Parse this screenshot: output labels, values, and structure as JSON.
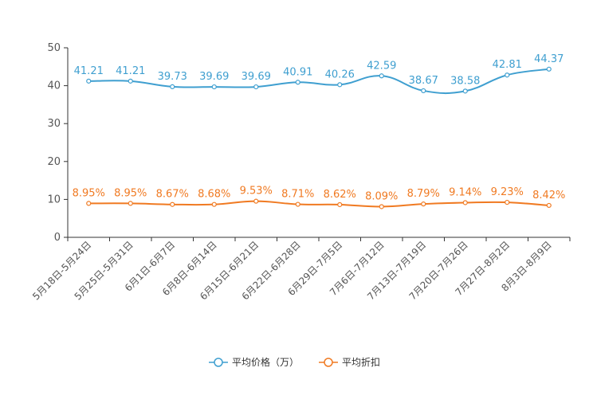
{
  "chart_data": {
    "type": "line",
    "categories": [
      "5月18日-5月24日",
      "5月25日-5月31日",
      "6月1日-6月7日",
      "6月8日-6月14日",
      "6月15日-6月21日",
      "6月22日-6月28日",
      "6月29日-7月5日",
      "7月6日-7月12日",
      "7月13日-7月19日",
      "7月20日-7月26日",
      "7月27日-8月2日",
      "8月3日-8月9日"
    ],
    "series": [
      {
        "name": "平均价格（万）",
        "color": "#3f9fd0",
        "values": [
          41.21,
          41.21,
          39.73,
          39.69,
          39.69,
          40.91,
          40.26,
          42.59,
          38.67,
          38.58,
          42.81,
          44.37
        ],
        "labels": [
          "41.21",
          "41.21",
          "39.73",
          "39.69",
          "39.69",
          "40.91",
          "40.26",
          "42.59",
          "38.67",
          "38.58",
          "42.81",
          "44.37"
        ]
      },
      {
        "name": "平均折扣",
        "color": "#f07a22",
        "values": [
          8.95,
          8.95,
          8.67,
          8.68,
          9.53,
          8.71,
          8.62,
          8.09,
          8.79,
          9.14,
          9.23,
          8.42
        ],
        "labels": [
          "8.95%",
          "8.95%",
          "8.67%",
          "8.68%",
          "9.53%",
          "8.71%",
          "8.62%",
          "8.09%",
          "8.79%",
          "9.14%",
          "9.23%",
          "8.42%"
        ]
      }
    ],
    "yticks": [
      "0",
      "10",
      "20",
      "30",
      "40",
      "50"
    ],
    "ylim": [
      0,
      50
    ],
    "grid": false,
    "legend": "bottom-center",
    "title": "",
    "xlabel": "",
    "ylabel": ""
  }
}
